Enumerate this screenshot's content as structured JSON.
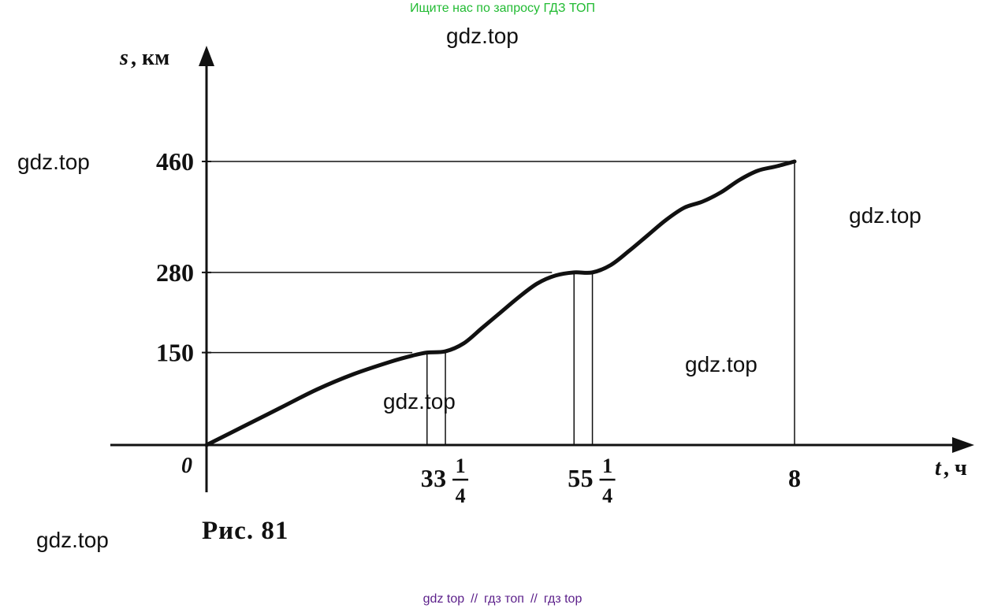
{
  "header_note": "Ищите нас по запросу ГДЗ ТОП",
  "watermark": "gdz.top",
  "footer_links": [
    "gdz top",
    "гдз топ",
    "гдз top"
  ],
  "footer_separator": "//",
  "caption": "Рис. 81",
  "colors": {
    "header_note": "#22bb33",
    "footer_links": "#5b1f8a",
    "ink": "#111111"
  },
  "chart_data": {
    "type": "line",
    "xlabel_var": "t",
    "xlabel_unit": ", ч",
    "ylabel_var": "s",
    "ylabel_unit": ", км",
    "origin_label": "0",
    "x_ticks": [
      {
        "value": 3,
        "whole": "3",
        "num": "",
        "den": ""
      },
      {
        "value": 3.25,
        "whole": "3",
        "num": "1",
        "den": "4"
      },
      {
        "value": 5,
        "whole": "5",
        "num": "",
        "den": ""
      },
      {
        "value": 5.25,
        "whole": "5",
        "num": "1",
        "den": "4"
      },
      {
        "value": 8,
        "whole": "8",
        "num": "",
        "den": ""
      }
    ],
    "y_ticks": [
      {
        "value": 150,
        "label": "150"
      },
      {
        "value": 280,
        "label": "280"
      },
      {
        "value": 460,
        "label": "460"
      }
    ],
    "xlim": [
      0,
      8
    ],
    "ylim": [
      0,
      460
    ],
    "grid": false,
    "series": [
      {
        "x": [
          0,
          0.5,
          1,
          1.5,
          2,
          2.5,
          2.8,
          3,
          3.25,
          3.5,
          3.75,
          4,
          4.25,
          4.5,
          4.75,
          5,
          5.25,
          5.5,
          5.75,
          6,
          6.25,
          6.5,
          6.75,
          7,
          7.25,
          7.5,
          7.75,
          8
        ],
        "y": [
          0,
          30,
          60,
          90,
          115,
          135,
          145,
          150,
          152,
          165,
          190,
          215,
          240,
          262,
          275,
          280,
          280,
          292,
          315,
          340,
          365,
          385,
          395,
          410,
          430,
          445,
          452,
          460
        ]
      }
    ],
    "guides": [
      {
        "type": "hline",
        "y": 150,
        "x_from": 0,
        "x_to": 2.8
      },
      {
        "type": "hline",
        "y": 280,
        "x_from": 0,
        "x_to": 4.7
      },
      {
        "type": "hline",
        "y": 460,
        "x_from": 0,
        "x_to": 8
      },
      {
        "type": "vline",
        "x": 3,
        "y_from": 0,
        "y_to": 150
      },
      {
        "type": "vline",
        "x": 3.25,
        "y_from": 0,
        "y_to": 152
      },
      {
        "type": "vline",
        "x": 5,
        "y_from": 0,
        "y_to": 280
      },
      {
        "type": "vline",
        "x": 5.25,
        "y_from": 0,
        "y_to": 280
      },
      {
        "type": "vline",
        "x": 8,
        "y_from": 0,
        "y_to": 460
      }
    ]
  }
}
